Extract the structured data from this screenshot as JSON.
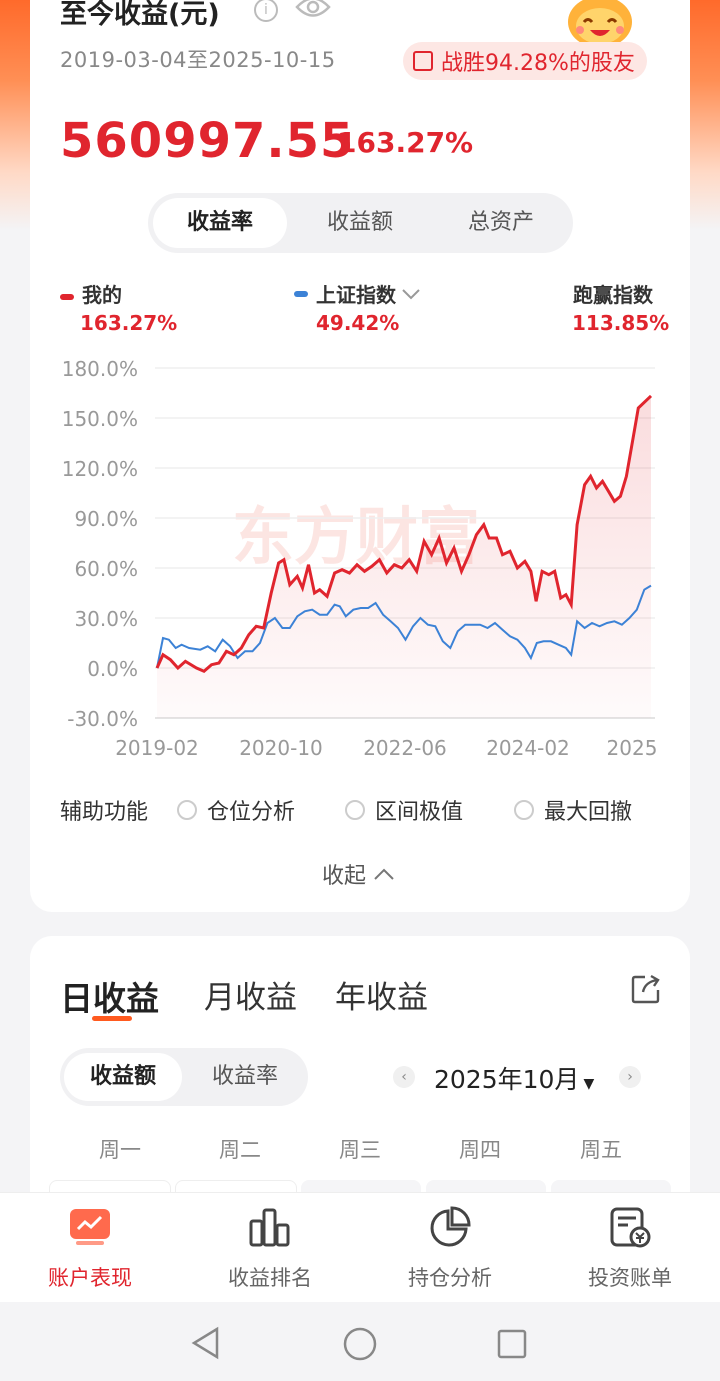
{
  "header": {
    "title": "至今收益(元)",
    "date_range": "2019-03-04至2025-10-15",
    "beat_text": "战胜94.28%的股友",
    "total_profit": "560997.55",
    "total_return": "163.27%"
  },
  "metric_tabs": [
    "收益率",
    "收益额",
    "总资产"
  ],
  "legend": {
    "mine_label": "我的",
    "mine_value": "163.27%",
    "index_label": "上证指数",
    "index_value": "49.42%",
    "beat_label": "跑赢指数",
    "beat_value": "113.85%"
  },
  "watermark": "东方财富",
  "colors": {
    "accent": "#e0252e",
    "index_line": "#3c82d6",
    "brand_orange": "#ff6a2b"
  },
  "chart_data": {
    "type": "line",
    "x_tick_labels": [
      "2019-02",
      "2020-10",
      "2022-06",
      "2024-02",
      "2025"
    ],
    "y_tick_labels": [
      "180.0%",
      "150.0%",
      "120.0%",
      "90.0%",
      "60.0%",
      "30.0%",
      "0.0%",
      "-30.0%"
    ],
    "ylim": [
      -30,
      180
    ],
    "xlim": [
      2019.17,
      2025.79
    ],
    "grid": true,
    "series": [
      {
        "name": "我的",
        "color": "#e0252e",
        "points": [
          [
            2019.17,
            0
          ],
          [
            2019.25,
            8
          ],
          [
            2019.35,
            5
          ],
          [
            2019.45,
            0
          ],
          [
            2019.55,
            4
          ],
          [
            2019.7,
            0
          ],
          [
            2019.8,
            -2
          ],
          [
            2019.9,
            2
          ],
          [
            2020.0,
            3
          ],
          [
            2020.1,
            10
          ],
          [
            2020.2,
            8
          ],
          [
            2020.3,
            12
          ],
          [
            2020.4,
            20
          ],
          [
            2020.5,
            25
          ],
          [
            2020.6,
            24
          ],
          [
            2020.7,
            45
          ],
          [
            2020.8,
            63
          ],
          [
            2020.87,
            65
          ],
          [
            2020.95,
            50
          ],
          [
            2021.05,
            55
          ],
          [
            2021.12,
            48
          ],
          [
            2021.2,
            62
          ],
          [
            2021.28,
            45
          ],
          [
            2021.35,
            47
          ],
          [
            2021.45,
            43
          ],
          [
            2021.55,
            57
          ],
          [
            2021.65,
            59
          ],
          [
            2021.75,
            57
          ],
          [
            2021.85,
            62
          ],
          [
            2021.95,
            58
          ],
          [
            2022.05,
            61
          ],
          [
            2022.15,
            65
          ],
          [
            2022.25,
            57
          ],
          [
            2022.35,
            62
          ],
          [
            2022.45,
            60
          ],
          [
            2022.55,
            65
          ],
          [
            2022.65,
            58
          ],
          [
            2022.75,
            76
          ],
          [
            2022.85,
            68
          ],
          [
            2022.95,
            78
          ],
          [
            2023.05,
            63
          ],
          [
            2023.15,
            72
          ],
          [
            2023.25,
            58
          ],
          [
            2023.35,
            68
          ],
          [
            2023.45,
            80
          ],
          [
            2023.55,
            86
          ],
          [
            2023.62,
            78
          ],
          [
            2023.72,
            78
          ],
          [
            2023.8,
            68
          ],
          [
            2023.9,
            70
          ],
          [
            2024.0,
            60
          ],
          [
            2024.1,
            64
          ],
          [
            2024.18,
            58
          ],
          [
            2024.25,
            40
          ],
          [
            2024.33,
            58
          ],
          [
            2024.42,
            56
          ],
          [
            2024.5,
            58
          ],
          [
            2024.58,
            42
          ],
          [
            2024.65,
            44
          ],
          [
            2024.72,
            38
          ],
          [
            2024.8,
            86
          ],
          [
            2024.9,
            110
          ],
          [
            2024.98,
            115
          ],
          [
            2025.06,
            108
          ],
          [
            2025.14,
            112
          ],
          [
            2025.22,
            106
          ],
          [
            2025.3,
            100
          ],
          [
            2025.38,
            103
          ],
          [
            2025.46,
            115
          ],
          [
            2025.55,
            138
          ],
          [
            2025.62,
            156
          ],
          [
            2025.79,
            163.27
          ]
        ]
      },
      {
        "name": "上证指数",
        "color": "#3c82d6",
        "points": [
          [
            2019.17,
            0
          ],
          [
            2019.25,
            18
          ],
          [
            2019.33,
            17
          ],
          [
            2019.42,
            12
          ],
          [
            2019.5,
            14
          ],
          [
            2019.6,
            12
          ],
          [
            2019.75,
            11
          ],
          [
            2019.85,
            13
          ],
          [
            2019.95,
            10
          ],
          [
            2020.05,
            17
          ],
          [
            2020.15,
            13
          ],
          [
            2020.25,
            6
          ],
          [
            2020.35,
            10
          ],
          [
            2020.45,
            10
          ],
          [
            2020.55,
            15
          ],
          [
            2020.65,
            27
          ],
          [
            2020.75,
            30
          ],
          [
            2020.85,
            24
          ],
          [
            2020.95,
            24
          ],
          [
            2021.05,
            31
          ],
          [
            2021.15,
            34
          ],
          [
            2021.25,
            35
          ],
          [
            2021.35,
            32
          ],
          [
            2021.45,
            32
          ],
          [
            2021.55,
            38
          ],
          [
            2021.62,
            37
          ],
          [
            2021.7,
            31
          ],
          [
            2021.8,
            35
          ],
          [
            2021.9,
            36
          ],
          [
            2022.0,
            36
          ],
          [
            2022.1,
            39
          ],
          [
            2022.2,
            32
          ],
          [
            2022.3,
            28
          ],
          [
            2022.4,
            24
          ],
          [
            2022.5,
            17
          ],
          [
            2022.6,
            25
          ],
          [
            2022.7,
            30
          ],
          [
            2022.8,
            26
          ],
          [
            2022.9,
            25
          ],
          [
            2023.0,
            16
          ],
          [
            2023.1,
            12
          ],
          [
            2023.2,
            22
          ],
          [
            2023.3,
            26
          ],
          [
            2023.4,
            26
          ],
          [
            2023.5,
            26
          ],
          [
            2023.6,
            24
          ],
          [
            2023.7,
            27
          ],
          [
            2023.8,
            23
          ],
          [
            2023.9,
            19
          ],
          [
            2024.0,
            17
          ],
          [
            2024.1,
            12
          ],
          [
            2024.18,
            6
          ],
          [
            2024.26,
            15
          ],
          [
            2024.35,
            16
          ],
          [
            2024.45,
            16
          ],
          [
            2024.55,
            14
          ],
          [
            2024.65,
            12
          ],
          [
            2024.72,
            8
          ],
          [
            2024.8,
            28
          ],
          [
            2024.9,
            24
          ],
          [
            2025.0,
            27
          ],
          [
            2025.1,
            25
          ],
          [
            2025.2,
            27
          ],
          [
            2025.3,
            28
          ],
          [
            2025.4,
            26
          ],
          [
            2025.5,
            30
          ],
          [
            2025.6,
            35
          ],
          [
            2025.7,
            47
          ],
          [
            2025.79,
            49.42
          ]
        ]
      }
    ]
  },
  "aux": {
    "label": "辅助功能",
    "options": [
      "仓位分析",
      "区间极值",
      "最大回撤"
    ]
  },
  "collapse_label": "收起",
  "period_tabs": [
    "日收益",
    "月收益",
    "年收益"
  ],
  "value_tabs": [
    "收益额",
    "收益率"
  ],
  "calendar": {
    "month": "2025年10月",
    "weekdays": [
      "周一",
      "周二",
      "周三",
      "周四",
      "周五"
    ]
  },
  "bottom_nav": [
    {
      "label": "账户表现",
      "icon": "performance-icon"
    },
    {
      "label": "收益排名",
      "icon": "ranking-icon"
    },
    {
      "label": "持仓分析",
      "icon": "pie-chart-icon"
    },
    {
      "label": "投资账单",
      "icon": "bill-icon"
    }
  ]
}
